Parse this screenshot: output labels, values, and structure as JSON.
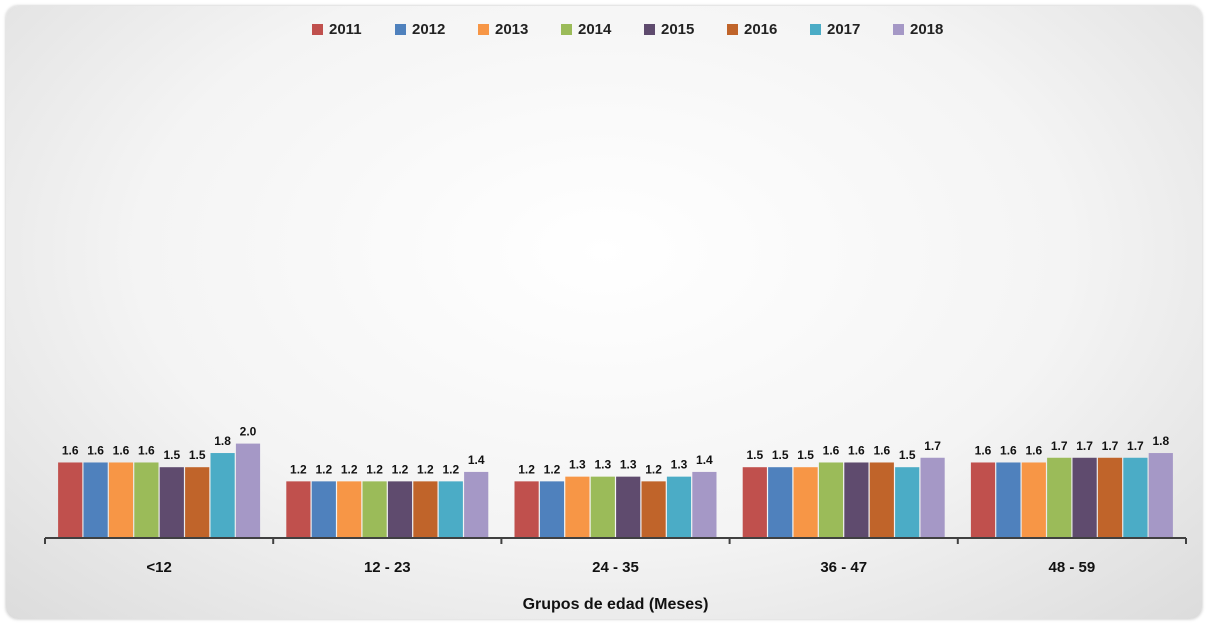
{
  "chart_data": {
    "type": "bar",
    "title": "",
    "xlabel": "Grupos de edad (Meses)",
    "ylabel": "",
    "legend_position": "top",
    "grid": false,
    "ylim": [
      0,
      10
    ],
    "categories": [
      "<12",
      "12 - 23",
      "24 - 35",
      "36 - 47",
      "48 - 59"
    ],
    "series": [
      {
        "name": "2011",
        "color": "#c0504d",
        "values": [
          1.6,
          1.2,
          1.2,
          1.5,
          1.6
        ],
        "labels": [
          "1.6",
          "1.2",
          "1.2",
          "1.5",
          "1.6"
        ]
      },
      {
        "name": "2012",
        "color": "#4f81bd",
        "values": [
          1.6,
          1.2,
          1.2,
          1.5,
          1.6
        ],
        "labels": [
          "1.6",
          "1.2",
          "1.2",
          "1.5",
          "1.6"
        ]
      },
      {
        "name": "2013",
        "color": "#f79646",
        "values": [
          1.6,
          1.2,
          1.3,
          1.5,
          1.6
        ],
        "labels": [
          "1.6",
          "1.2",
          "1.3",
          "1.5",
          "1.6"
        ]
      },
      {
        "name": "2014",
        "color": "#9bbb59",
        "values": [
          1.6,
          1.2,
          1.3,
          1.6,
          1.7
        ],
        "labels": [
          "1.6",
          "1.2",
          "1.3",
          "1.6",
          "1.7"
        ]
      },
      {
        "name": "2015",
        "color": "#5f4b6e",
        "values": [
          1.5,
          1.2,
          1.3,
          1.6,
          1.7
        ],
        "labels": [
          "1.5",
          "1.2",
          "1.3",
          "1.6",
          "1.7"
        ]
      },
      {
        "name": "2016",
        "color": "#c0642a",
        "values": [
          1.5,
          1.2,
          1.2,
          1.6,
          1.7
        ],
        "labels": [
          "1.5",
          "1.2",
          "1.2",
          "1.6",
          "1.7"
        ]
      },
      {
        "name": "2017",
        "color": "#4bacc6",
        "values": [
          1.8,
          1.2,
          1.3,
          1.5,
          1.7
        ],
        "labels": [
          "1.8",
          "1.2",
          "1.3",
          "1.5",
          "1.7"
        ]
      },
      {
        "name": "2018",
        "color": "#a598c6",
        "values": [
          2.0,
          1.4,
          1.4,
          1.7,
          1.8
        ],
        "labels": [
          "2.0",
          "1.4",
          "1.4",
          "1.7",
          "1.8"
        ]
      }
    ]
  }
}
